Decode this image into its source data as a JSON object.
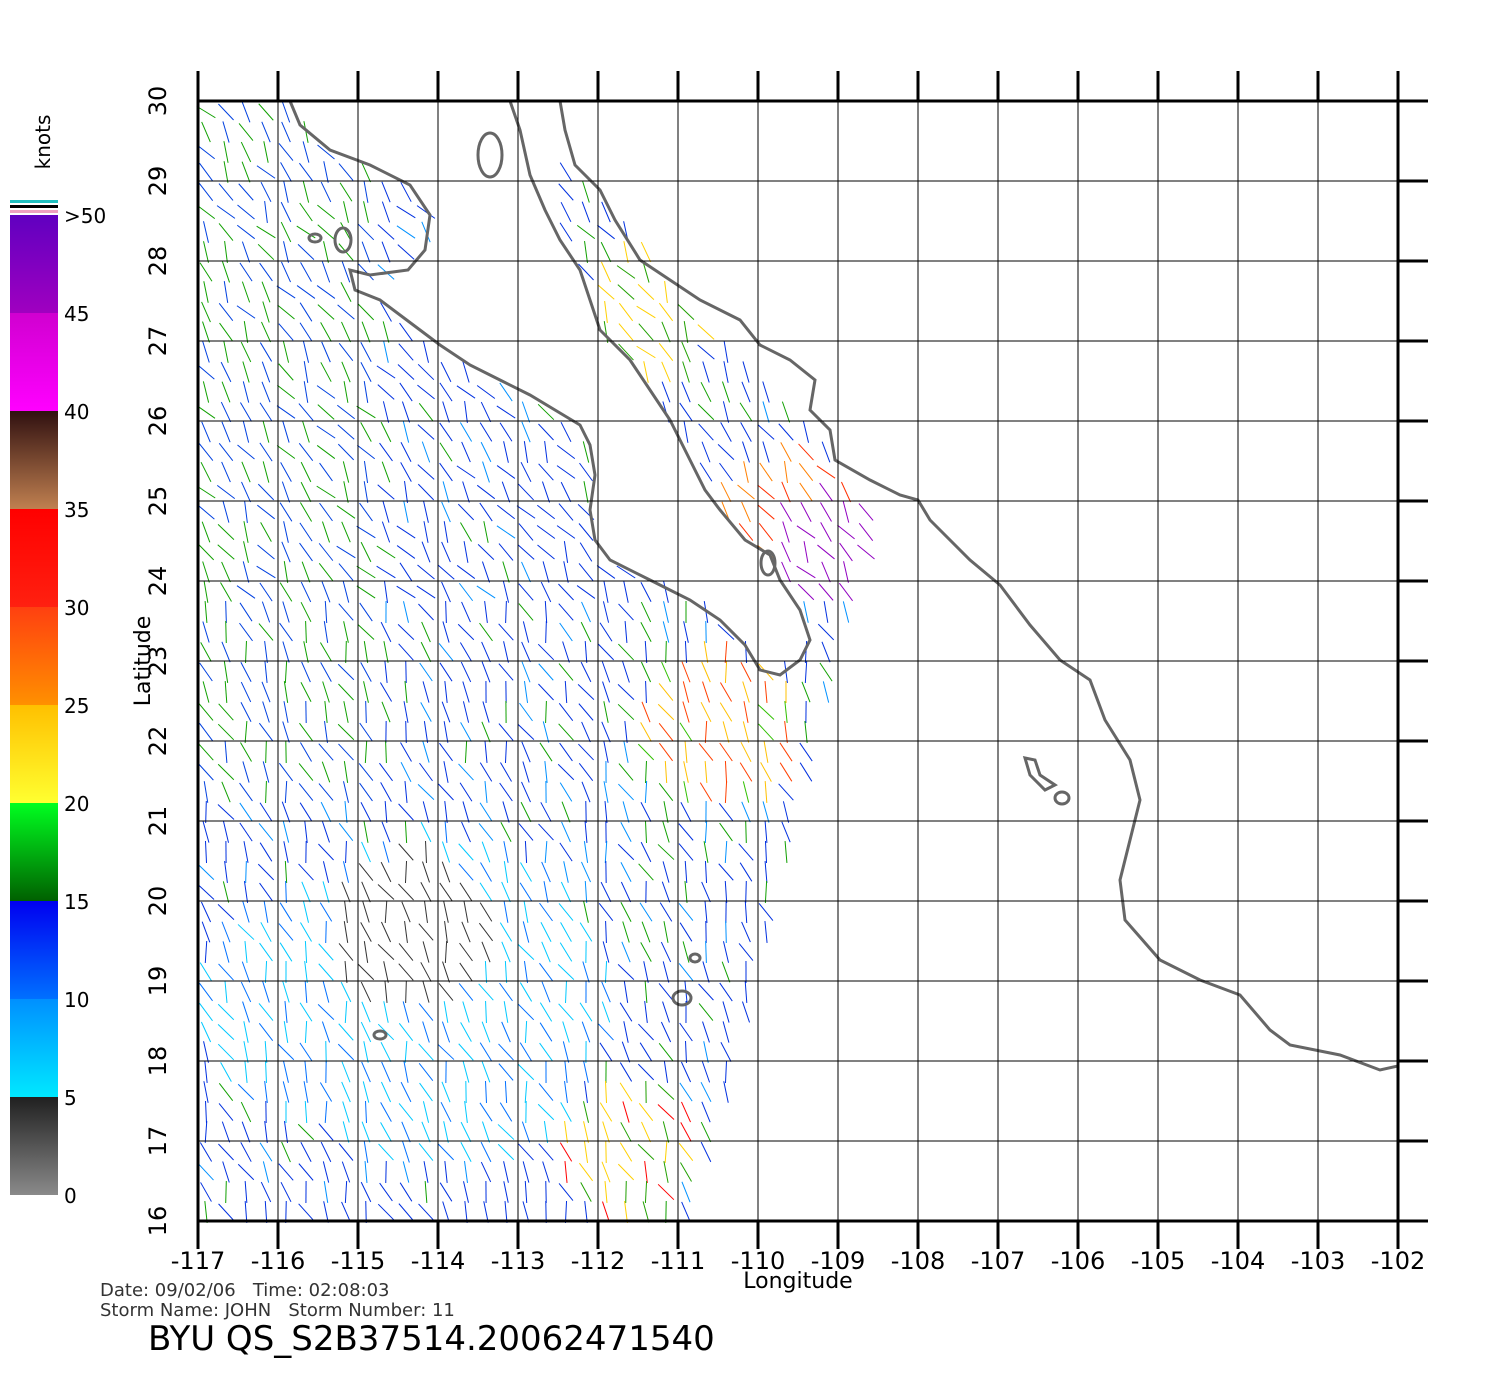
{
  "map": {
    "x_axis": {
      "label": "Longitude",
      "lim": [
        -117,
        -102
      ],
      "ticks": [
        -117,
        -116,
        -115,
        -114,
        -113,
        -112,
        -111,
        -110,
        -109,
        -108,
        -107,
        -106,
        -105,
        -104,
        -103,
        -102
      ]
    },
    "y_axis": {
      "label": "Latitude",
      "lim": [
        16,
        30
      ],
      "ticks": [
        16,
        17,
        18,
        19,
        20,
        21,
        22,
        23,
        24,
        25,
        26,
        27,
        28,
        29,
        30
      ]
    },
    "grid": true,
    "colorbar": {
      "label": "knots",
      "lim": [
        0,
        50
      ],
      "ticks": [
        0,
        5,
        10,
        15,
        20,
        25,
        30,
        35,
        40,
        45,
        {
          "value": 50,
          "label": ">50"
        }
      ],
      "colors": [
        [
          "#8a8a8a",
          "#202020"
        ],
        [
          "#00e8ff",
          "#0090ff"
        ],
        [
          "#0070ff",
          "#0000f0"
        ],
        [
          "#006000",
          "#00ff20"
        ],
        [
          "#ffff30",
          "#ffc000"
        ],
        [
          "#ff9000",
          "#ff4010"
        ],
        [
          "#ff2010",
          "#ff0000"
        ],
        [
          "#c08050",
          "#301010"
        ],
        [
          "#ff00ff",
          "#d000d0"
        ],
        [
          "#a000c0",
          "#6000c0"
        ]
      ]
    },
    "info_lines": [
      "Date: 09/02/06   Time: 02:08:03",
      "Storm Name: JOHN   Storm Number: 11"
    ],
    "title": "BYU  QS_S2B37514.20062471540"
  }
}
